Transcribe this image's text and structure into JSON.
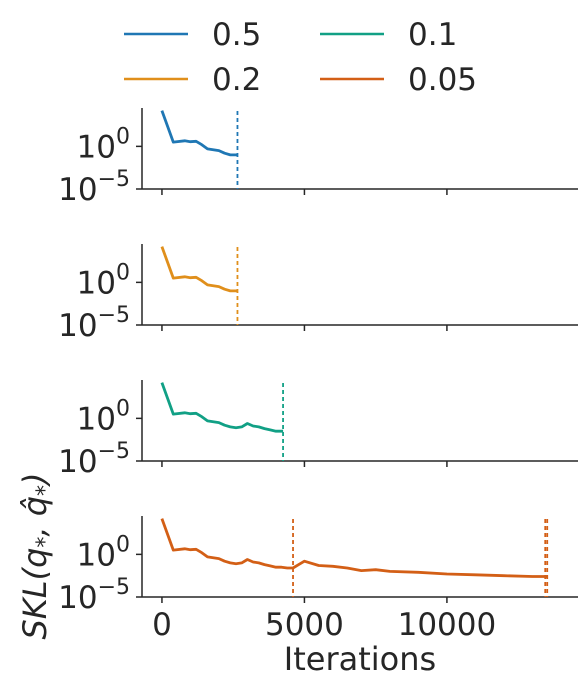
{
  "chart_data": {
    "type": "line",
    "xlabel": "Iterations",
    "ylabel": "SKL(q*, q̂*)",
    "ylabel_parts": {
      "pre": "SKL(q",
      "sub1": "*",
      "mid": ", ",
      "hat": "q",
      "sub2": "*",
      "post": ")"
    },
    "xlim": [
      -700,
      14600
    ],
    "x_ticks": [
      0,
      5000,
      10000
    ],
    "x_tick_labels": [
      "0",
      "5000",
      "10000"
    ],
    "y_scale": "log",
    "ylim_log10": [
      -5,
      4.5
    ],
    "y_ticks": [
      {
        "base": "10",
        "exp": "0",
        "value_log10": 0
      },
      {
        "base": "10",
        "exp": "−5",
        "value_log10": -5
      }
    ],
    "legend": {
      "placement": "top-center",
      "entries": [
        {
          "label": "0.5",
          "color": "#1f77b4"
        },
        {
          "label": "0.1",
          "color": "#11a085"
        },
        {
          "label": "0.2",
          "color": "#e08f1b"
        },
        {
          "label": "0.05",
          "color": "#d35f16"
        }
      ]
    },
    "panels": [
      {
        "name": "0.5",
        "color": "#1f77b4",
        "x": [
          0,
          400,
          800,
          1000,
          1200,
          1400,
          1600,
          1800,
          2000,
          2200,
          2400,
          2650
        ],
        "y_log10": [
          4.2,
          0.5,
          0.65,
          0.55,
          0.6,
          0.2,
          -0.3,
          -0.4,
          -0.5,
          -0.8,
          -1.0,
          -1.0
        ],
        "stop_lines": [
          2650
        ]
      },
      {
        "name": "0.2",
        "color": "#e08f1b",
        "x": [
          0,
          400,
          800,
          1000,
          1200,
          1400,
          1600,
          1800,
          2000,
          2200,
          2400,
          2650
        ],
        "y_log10": [
          4.2,
          0.5,
          0.65,
          0.55,
          0.6,
          0.2,
          -0.3,
          -0.4,
          -0.5,
          -0.8,
          -1.0,
          -1.0
        ],
        "stop_lines": [
          2650
        ]
      },
      {
        "name": "0.1",
        "color": "#11a085",
        "x": [
          0,
          400,
          800,
          1000,
          1200,
          1400,
          1600,
          1800,
          2000,
          2200,
          2400,
          2600,
          2800,
          3000,
          3200,
          3400,
          3600,
          3800,
          4000,
          4250
        ],
        "y_log10": [
          4.2,
          0.5,
          0.65,
          0.55,
          0.6,
          0.2,
          -0.3,
          -0.4,
          -0.5,
          -0.8,
          -1.0,
          -1.1,
          -1.0,
          -0.6,
          -0.9,
          -1.0,
          -1.2,
          -1.35,
          -1.5,
          -1.5
        ],
        "stop_lines": [
          4250
        ]
      },
      {
        "name": "0.05",
        "color": "#d35f16",
        "x": [
          0,
          400,
          800,
          1000,
          1200,
          1400,
          1600,
          1800,
          2000,
          2200,
          2400,
          2600,
          2800,
          3000,
          3200,
          3400,
          3600,
          3800,
          4000,
          4200,
          4400,
          4600,
          4800,
          5000,
          5500,
          6000,
          6500,
          7000,
          7500,
          8000,
          9000,
          10000,
          11000,
          12000,
          13000,
          13500
        ],
        "y_log10": [
          4.2,
          0.5,
          0.65,
          0.55,
          0.6,
          0.2,
          -0.3,
          -0.4,
          -0.5,
          -0.8,
          -1.0,
          -1.1,
          -1.0,
          -0.6,
          -0.9,
          -1.0,
          -1.2,
          -1.35,
          -1.5,
          -1.5,
          -1.6,
          -1.6,
          -1.2,
          -0.8,
          -1.3,
          -1.4,
          -1.6,
          -1.9,
          -1.8,
          -2.0,
          -2.1,
          -2.3,
          -2.4,
          -2.5,
          -2.6,
          -2.6
        ],
        "stop_lines": [
          4600,
          13450,
          13520
        ]
      }
    ]
  }
}
